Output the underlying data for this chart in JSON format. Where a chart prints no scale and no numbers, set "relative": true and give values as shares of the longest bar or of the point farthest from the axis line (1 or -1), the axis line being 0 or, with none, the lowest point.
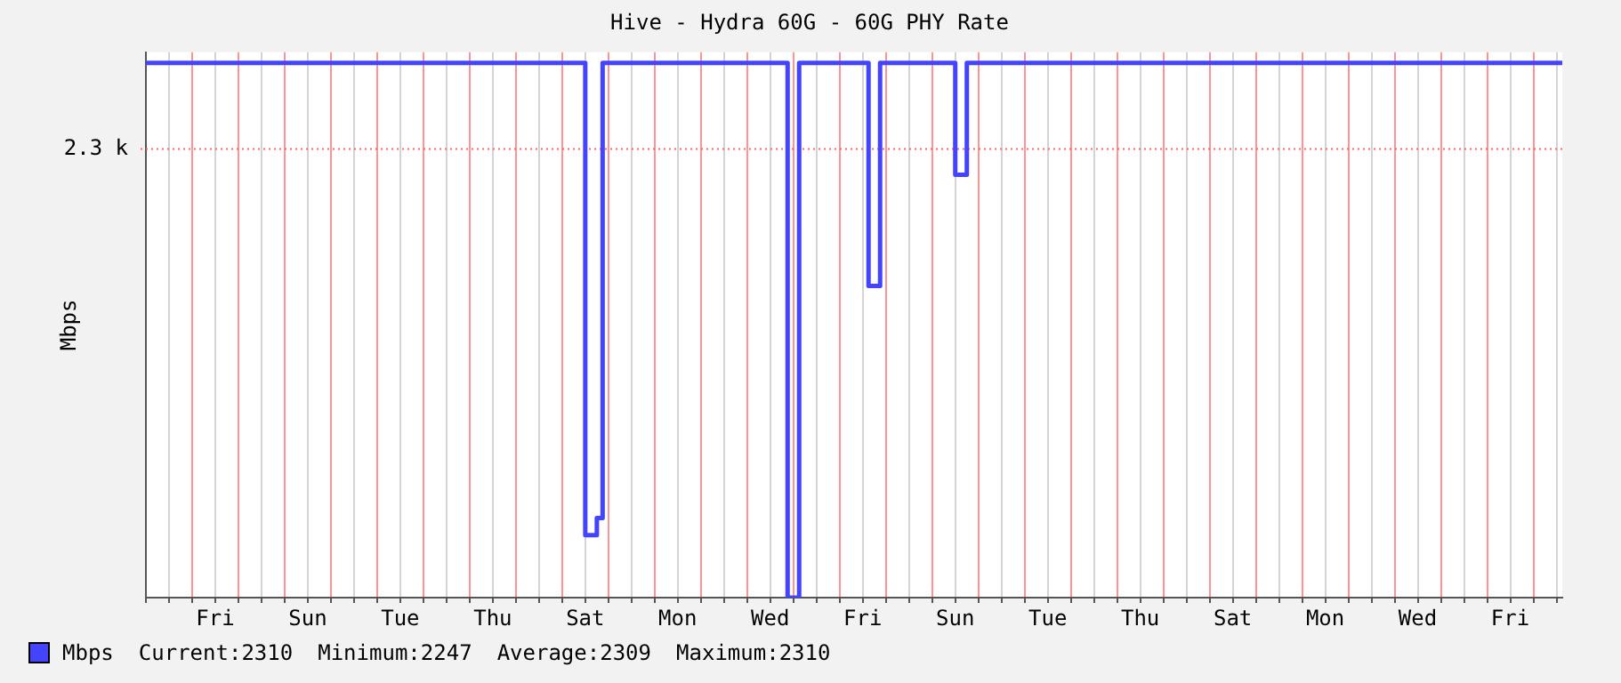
{
  "chart_data": {
    "type": "step",
    "title": "Hive - Hydra 60G - 60G PHY Rate",
    "ylabel": "Mbps",
    "relative": true,
    "categories": [
      null,
      null,
      null,
      null,
      null,
      null,
      null,
      null,
      null,
      null,
      null,
      null,
      "Fri",
      null,
      null,
      null,
      null,
      null,
      null,
      null,
      null,
      null,
      null,
      null,
      null,
      null,
      null,
      null,
      "Sun",
      null,
      null,
      null,
      null,
      null,
      null,
      null,
      null,
      null,
      null,
      null,
      null,
      null,
      null,
      null,
      "Tue",
      null,
      null,
      null,
      null,
      null,
      null,
      null,
      null,
      null,
      null,
      null,
      null,
      null,
      null,
      null,
      "Thu",
      null,
      null,
      null,
      null,
      null,
      null,
      null,
      null,
      null,
      null,
      null,
      null,
      null,
      null,
      null,
      "Sat",
      null,
      null,
      null,
      null,
      null,
      null,
      null,
      null,
      null,
      null,
      null,
      null,
      null,
      null,
      null,
      "Mon",
      null,
      null,
      null,
      null,
      null,
      null,
      null,
      null,
      null,
      null,
      null,
      null,
      null,
      null,
      null,
      "Wed",
      null,
      null,
      null,
      null,
      null,
      null,
      null,
      null,
      null,
      null,
      null,
      null,
      null,
      null,
      null,
      "Fri",
      null,
      null,
      null,
      null,
      null,
      null,
      null,
      null,
      null,
      null,
      null,
      null,
      null,
      null,
      null,
      "Sun",
      null,
      null,
      null,
      null,
      null,
      null,
      null,
      null,
      null,
      null,
      null,
      null,
      null,
      null,
      null,
      "Tue",
      null,
      null,
      null,
      null,
      null,
      null,
      null,
      null,
      null,
      null,
      null,
      null,
      null,
      null,
      null,
      "Thu",
      null,
      null,
      null,
      null,
      null,
      null,
      null,
      null,
      null,
      null,
      null,
      null,
      null,
      null,
      null,
      "Sat",
      null,
      null,
      null,
      null,
      null,
      null,
      null,
      null,
      null,
      null,
      null,
      null,
      null,
      null,
      null,
      "Mon",
      null,
      null,
      null,
      null,
      null,
      null,
      null,
      null,
      null,
      null,
      null,
      null,
      null,
      null,
      null,
      "Wed",
      null,
      null,
      null,
      null,
      null,
      null,
      null,
      null,
      null,
      null,
      null,
      null,
      null,
      null,
      null,
      "Fri",
      null,
      null,
      null,
      null,
      null,
      null,
      null,
      null,
      null
    ],
    "grid": true,
    "legend": "bottom",
    "marker": "none",
    "line_style": "solid",
    "ref_lines": [
      {
        "axis": "y",
        "value": 0.839,
        "label": "2.3 k",
        "color": "#ff6464"
      }
    ],
    "series": [
      {
        "name": "Mbps",
        "color": "#4444ff",
        "values": [
          1,
          1,
          1,
          1,
          1,
          1,
          1,
          1,
          1,
          1,
          1,
          1,
          1,
          1,
          1,
          1,
          1,
          1,
          1,
          1,
          1,
          1,
          1,
          1,
          1,
          1,
          1,
          1,
          1,
          1,
          1,
          1,
          1,
          1,
          1,
          1,
          1,
          1,
          1,
          1,
          1,
          1,
          1,
          1,
          1,
          1,
          1,
          1,
          1,
          1,
          1,
          1,
          1,
          1,
          1,
          1,
          1,
          1,
          1,
          1,
          1,
          1,
          1,
          1,
          1,
          1,
          1,
          1,
          1,
          1,
          1,
          1,
          1,
          1,
          1,
          1,
          0.117,
          0.117,
          0.149,
          1,
          1,
          1,
          1,
          1,
          1,
          1,
          1,
          1,
          1,
          1,
          1,
          1,
          1,
          1,
          1,
          1,
          1,
          1,
          1,
          1,
          1,
          1,
          1,
          1,
          1,
          1,
          1,
          1,
          1,
          1,
          1,
          0,
          0,
          1,
          1,
          1,
          1,
          1,
          1,
          1,
          1,
          1,
          1,
          1,
          1,
          0.583,
          0.583,
          1,
          1,
          1,
          1,
          1,
          1,
          1,
          1,
          1,
          1,
          1,
          1,
          1,
          0.791,
          0.791,
          1,
          1,
          1,
          1,
          1,
          1,
          1,
          1,
          1,
          1,
          1,
          1,
          1,
          1,
          1,
          1,
          1,
          1,
          1,
          1,
          1,
          1,
          1,
          1,
          1,
          1,
          1,
          1,
          1,
          1,
          1,
          1,
          1,
          1,
          1,
          1,
          1,
          1,
          1,
          1,
          1,
          1,
          1,
          1,
          1,
          1,
          1,
          1,
          1,
          1,
          1,
          1,
          1,
          1,
          1,
          1,
          1,
          1,
          1,
          1,
          1,
          1,
          1,
          1,
          1,
          1,
          1,
          1,
          1,
          1,
          1,
          1,
          1,
          1,
          1,
          1,
          1,
          1,
          1,
          1,
          1,
          1,
          1,
          1,
          1,
          1,
          1,
          1,
          1,
          1,
          1,
          1,
          1,
          1,
          1,
          1,
          1,
          1,
          1,
          1,
          1,
          1,
          1,
          1
        ]
      }
    ],
    "annotations": [
      "Current:2310",
      "Minimum:2247",
      "Average:2309",
      "Maximum:2310"
    ]
  }
}
